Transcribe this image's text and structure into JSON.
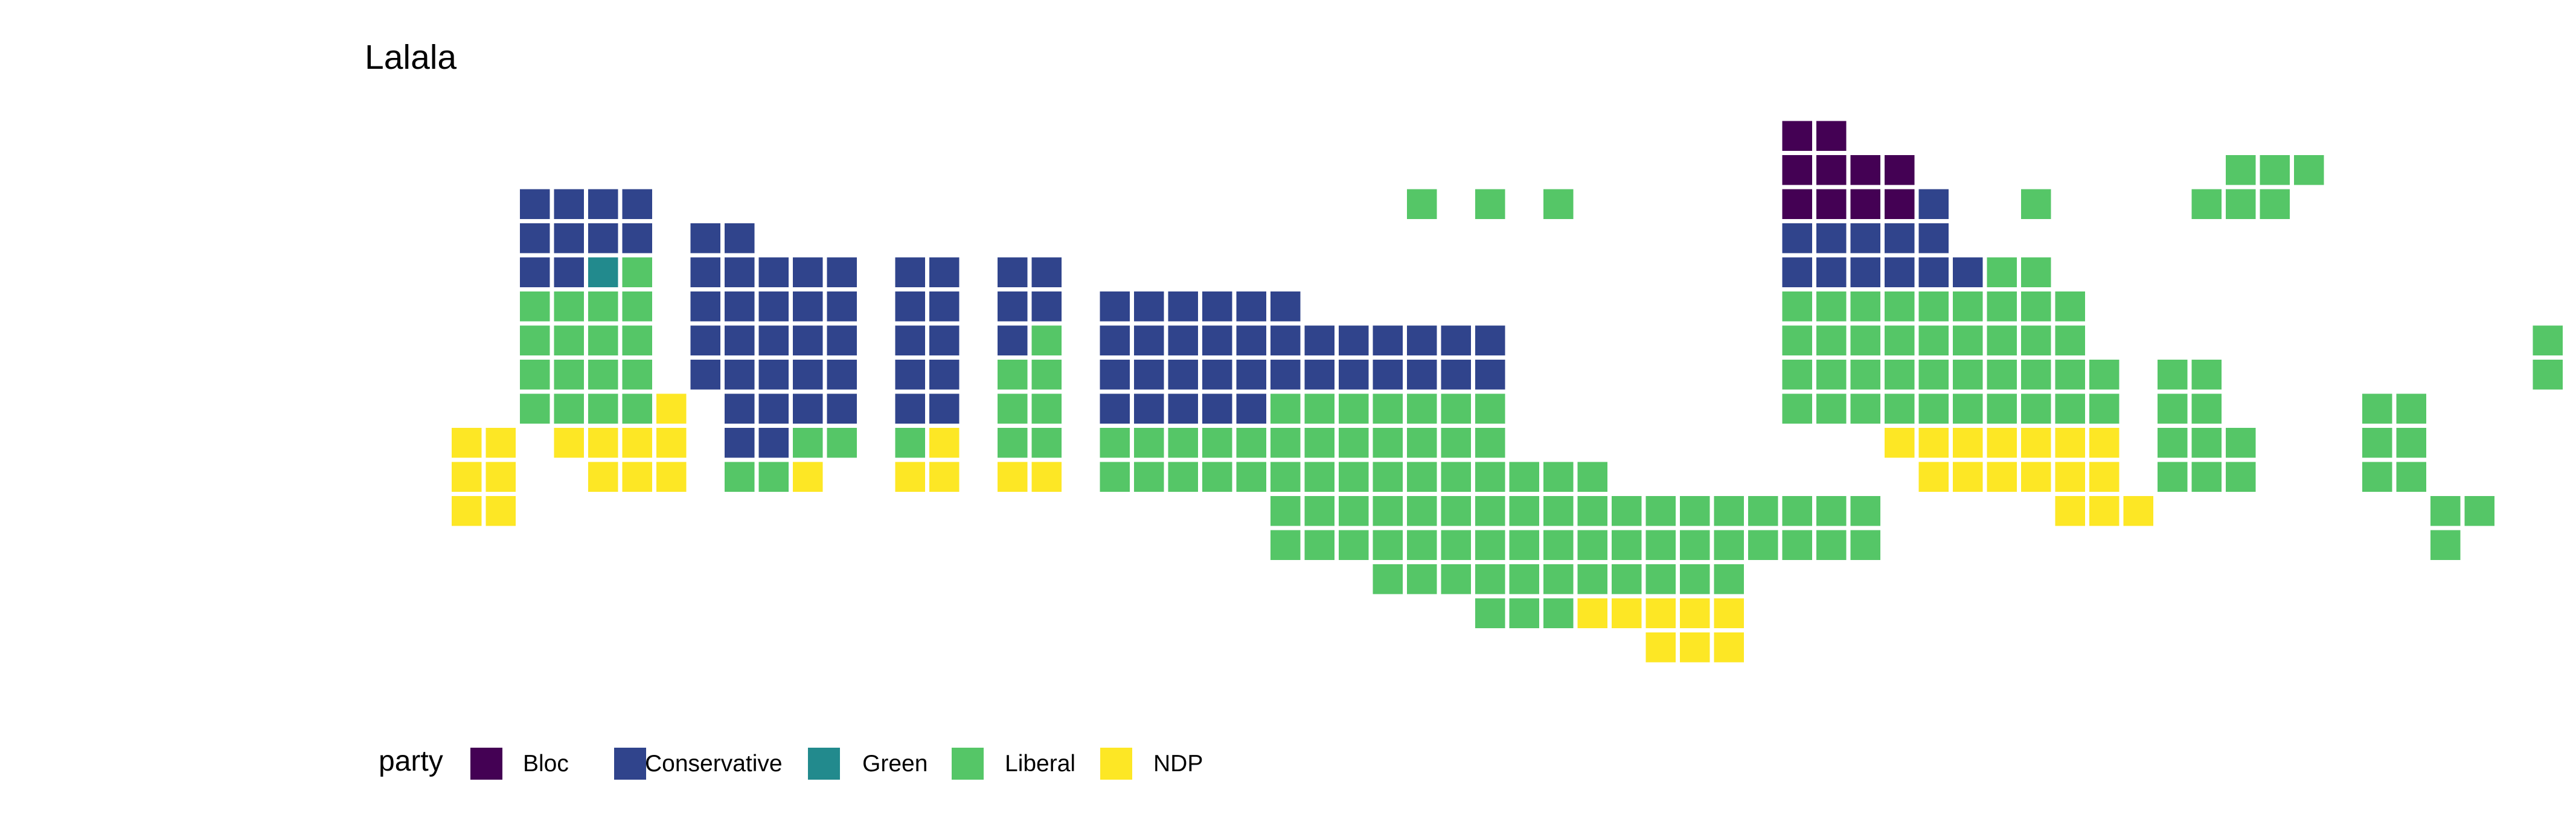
{
  "chart_data": {
    "type": "waffle-map",
    "title": "Lalala",
    "legend": {
      "title": "party",
      "placement": "bottom-left",
      "entries": [
        {
          "key": "B",
          "label": "Bloc",
          "color": "#440154"
        },
        {
          "key": "C",
          "label": "Conservative",
          "color": "#30448C"
        },
        {
          "key": "G",
          "label": "Green",
          "color": "#228A8D"
        },
        {
          "key": "L",
          "label": "Liberal",
          "color": "#55C667"
        },
        {
          "key": "N",
          "label": "NDP",
          "color": "#FDE725"
        }
      ]
    },
    "seat_rows": [
      "...............................................................",
      ".......................................BB......................",
      ".......................................BBBB.........LLL........",
      "..CCCC......................L.L.L......BBBBC..L....LLL........",
      "..CCCC.CC..............................CCCCC...................",
      "..CCGL.CCCCC.CC.CC.....................CCCCCCLL................",
      "..LLLL.CCCCC.CC.CC.CCCCCC..............LLLLLLLLL...............",
      "..LLLL.CCCCC.CC.CL.CCCCCCCCCCCC........LLLLLLLLL.............L",
      "..LLLL.CCCCC.CC.LL.CCCCCCCCCCCC........LLLLLLLLLL.LL.........L",
      "..LLLLN.CCCC.CC.LL.CCCCCLLLLLLL........LLLLLLLLLL.LL....LL....",
      "NN.NNNN.CCLL.LN.LL.LLLLLLLLLLLL...........NNNNNNN.LLL...LL....",
      "NN..NNN.LLN..NN.NN.LLLLLLLLLLLLLLL.........NNNNNN.LLL...LL....",
      "NN......................LLLLLLLLLLLLLLLLLL.....NNN........LL...",
      "........................LLLLLLLLLLLLLLLLLL................L....",
      "...........................LLLLLLLLLLL.........................",
      "..............................LLLNNNNN.........................",
      "...................................NNN........................."
    ]
  }
}
